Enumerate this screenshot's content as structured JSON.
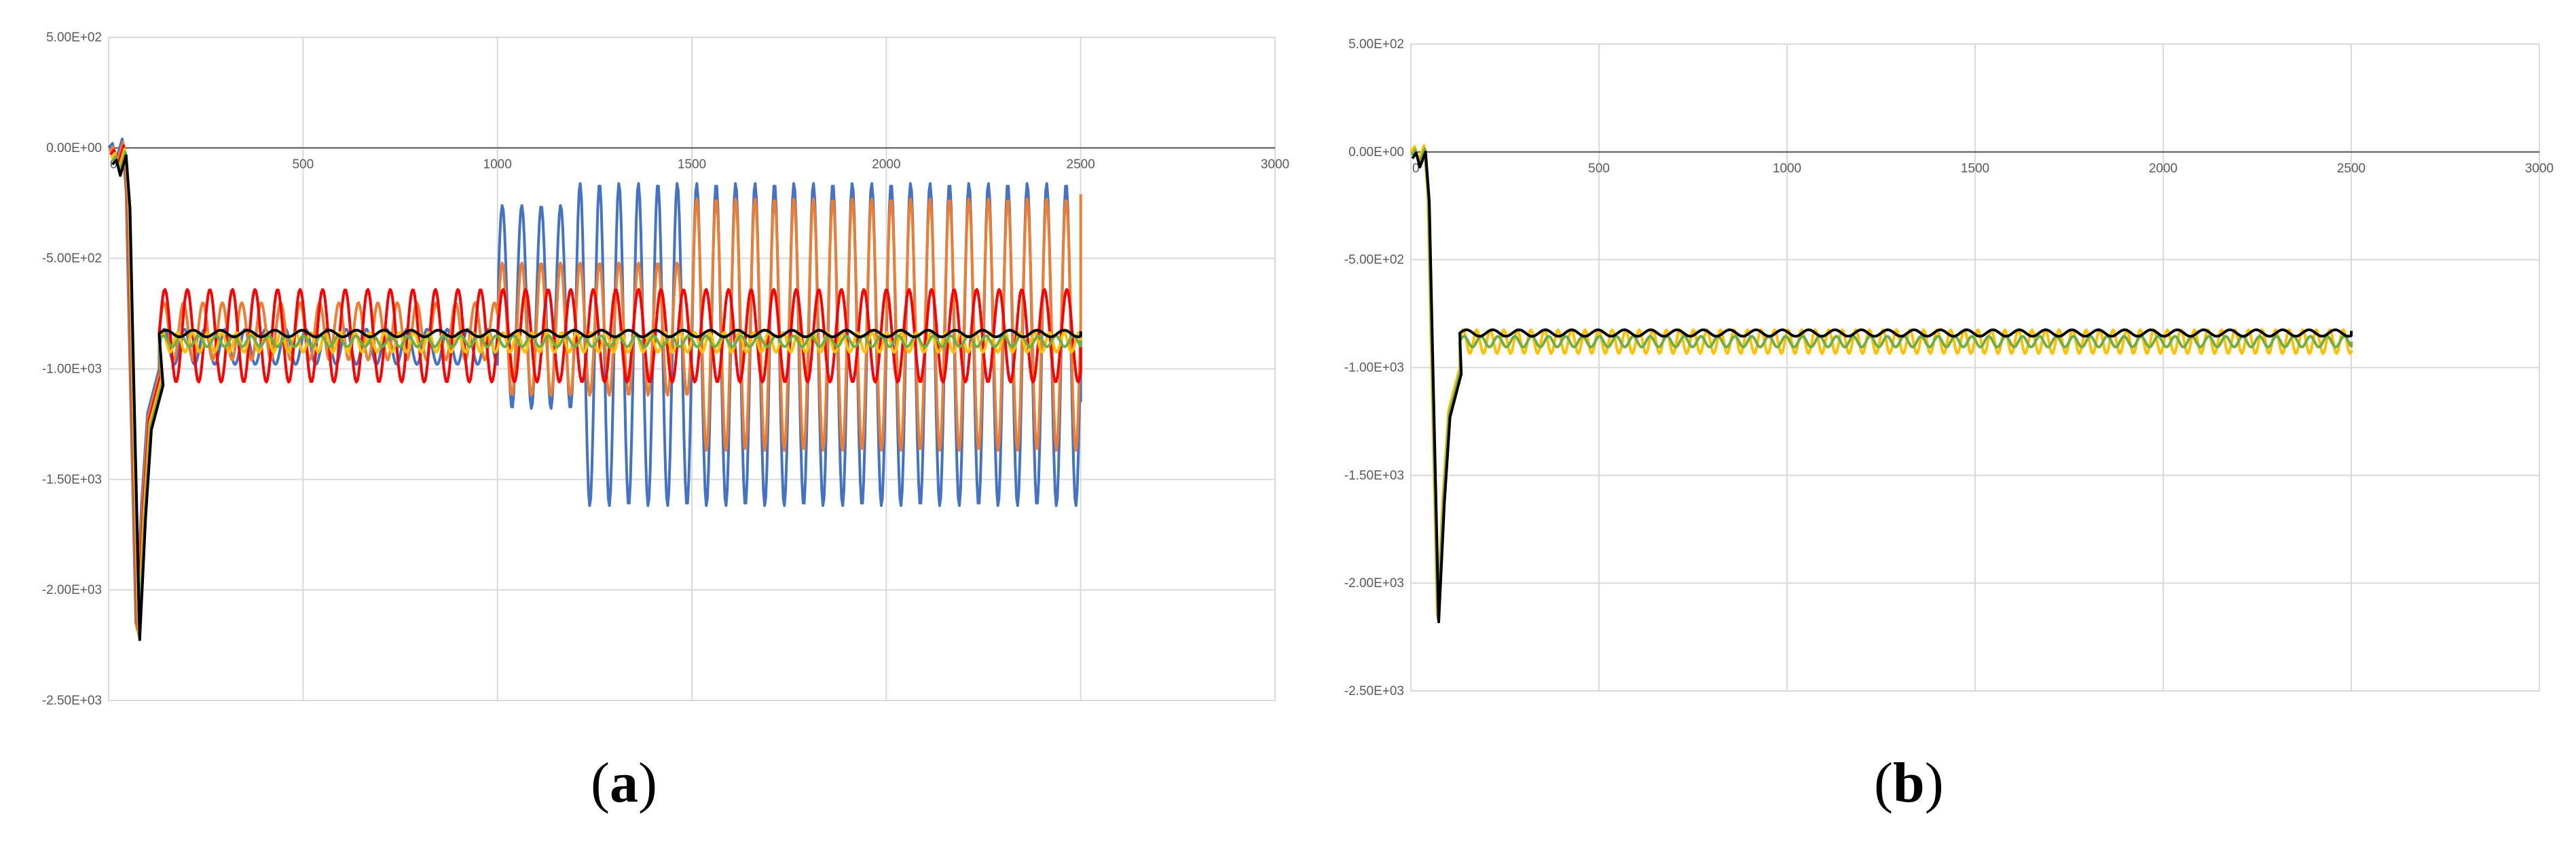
{
  "chart_data": [
    {
      "type": "line",
      "panel_label": "a",
      "x_ticks": [
        "500",
        "1000",
        "1500",
        "2000",
        "2500",
        "3000"
      ],
      "x_zero_label": "0",
      "y_ticks": [
        "5.00E+02",
        "0.00E+00",
        "-5.00E+02",
        "-1.00E+03",
        "-1.50E+03",
        "-2.00E+03",
        "-2.50E+03"
      ],
      "xlim": [
        0,
        3000
      ],
      "ylim": [
        -2500,
        500
      ],
      "grid": true,
      "legend": "none",
      "series": [
        {
          "color": "#4472c4",
          "segments": [
            {
              "from": 130,
              "to": 1000,
              "mean": -900,
              "amp": 80,
              "period": 52
            },
            {
              "from": 1000,
              "to": 1200,
              "mean": -720,
              "amp": 460,
              "period": 50
            },
            {
              "from": 1200,
              "to": 2500,
              "mean": -890,
              "amp": 730,
              "period": 50
            }
          ],
          "end_value": -1150
        },
        {
          "color": "#ed7d31",
          "segments": [
            {
              "from": 130,
              "to": 1000,
              "mean": -830,
              "amp": 130,
              "period": 50
            },
            {
              "from": 1000,
              "to": 1500,
              "mean": -820,
              "amp": 300,
              "period": 50
            },
            {
              "from": 1500,
              "to": 2500,
              "mean": -800,
              "amp": 570,
              "period": 50
            }
          ],
          "end_value": -210
        },
        {
          "color": "#ff0000",
          "segments": [
            {
              "from": 130,
              "to": 2500,
              "mean": -850,
              "amp": 210,
              "period": 58
            }
          ],
          "end_value": -850
        },
        {
          "color": "#ffc000",
          "segments": [
            {
              "from": 130,
              "to": 2500,
              "mean": -880,
              "amp": 45,
              "period": 38
            }
          ],
          "end_value": -900
        },
        {
          "color": "#70ad47",
          "segments": [
            {
              "from": 130,
              "to": 2500,
              "mean": -875,
              "amp": 25,
              "period": 45
            }
          ],
          "end_value": -870
        },
        {
          "color": "#000000",
          "segments": [
            {
              "from": 130,
              "to": 2500,
              "mean": -840,
              "amp": 15,
              "period": 70
            }
          ],
          "end_value": -830
        }
      ],
      "start_points": [
        [
          0,
          0
        ],
        [
          10,
          20
        ],
        [
          20,
          -50
        ],
        [
          35,
          40
        ],
        [
          45,
          -200
        ],
        [
          55,
          -1000
        ],
        [
          70,
          -2150
        ],
        [
          85,
          -1600
        ],
        [
          100,
          -1200
        ],
        [
          130,
          -1000
        ]
      ]
    },
    {
      "type": "line",
      "panel_label": "b",
      "x_ticks": [
        "500",
        "1000",
        "1500",
        "2000",
        "2500",
        "3000"
      ],
      "x_zero_label": "0",
      "y_ticks": [
        "5.00E+02",
        "0.00E+00",
        "-5.00E+02",
        "-1.00E+03",
        "-1.50E+03",
        "-2.00E+03",
        "-2.50E+03"
      ],
      "xlim": [
        0,
        3000
      ],
      "ylim": [
        -2500,
        500
      ],
      "grid": true,
      "legend": "none",
      "series": [
        {
          "color": "#ffc000",
          "segments": [
            {
              "from": 130,
              "to": 2500,
              "mean": -880,
              "amp": 55,
              "period": 36
            }
          ],
          "end_value": -920
        },
        {
          "color": "#70ad47",
          "segments": [
            {
              "from": 130,
              "to": 2500,
              "mean": -880,
              "amp": 25,
              "period": 45
            }
          ],
          "end_value": -880
        },
        {
          "color": "#000000",
          "segments": [
            {
              "from": 130,
              "to": 2500,
              "mean": -840,
              "amp": 15,
              "period": 70
            }
          ],
          "end_value": -830
        }
      ],
      "start_points": [
        [
          0,
          0
        ],
        [
          10,
          25
        ],
        [
          20,
          -40
        ],
        [
          35,
          30
        ],
        [
          45,
          -200
        ],
        [
          55,
          -1000
        ],
        [
          70,
          -2150
        ],
        [
          85,
          -1600
        ],
        [
          100,
          -1200
        ],
        [
          130,
          -1000
        ]
      ]
    }
  ]
}
